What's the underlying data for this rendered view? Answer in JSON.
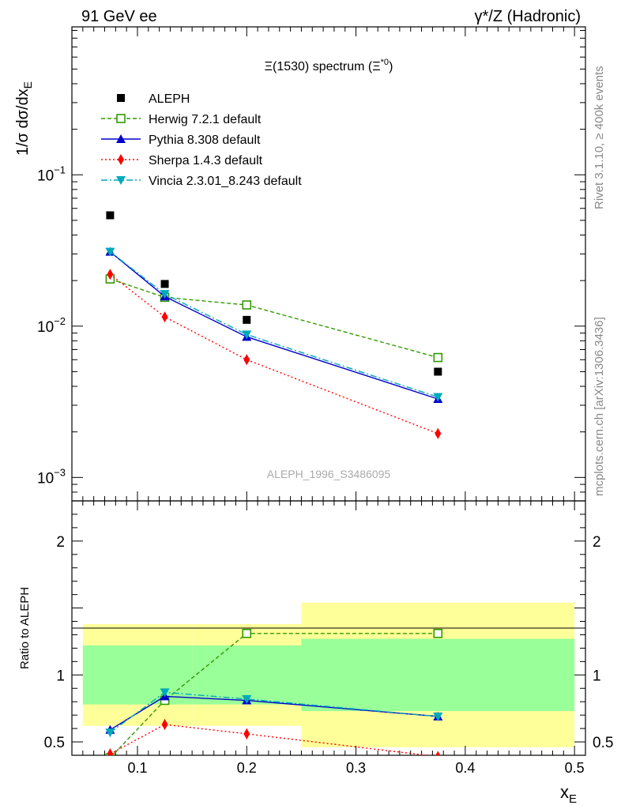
{
  "header": {
    "left": "91 GeV ee",
    "right": "γ*/Z (Hadronic)"
  },
  "side_labels": {
    "rivet": "Rivet 3.1.10, ≥ 400k events",
    "mcplots": "mcplots.cern.ch [arXiv:1306.3436]"
  },
  "chart_data": {
    "type": "scatter",
    "title": "Ξ(1530) spectrum (Ξ*0)",
    "title_main": "Ξ(1530) spectrum (Ξ",
    "title_sup": "*0",
    "title_end": ")",
    "watermark": "ALEPH_1996_S3486095",
    "xlabel": "x_E",
    "xlabel_main": "x",
    "xlabel_sub": "E",
    "ylabel": "1/σ dσ/dx_E",
    "ylabel_main": "1/σ dσ/dx",
    "ylabel_sub": "E",
    "ratio_ylabel": "Ratio to ALEPH",
    "xlim": [
      0.04,
      0.51
    ],
    "ylim": [
      0.0007,
      0.95
    ],
    "ratio_ylim": [
      0.4,
      2.3
    ],
    "yscale": "log",
    "x_ticks": [
      {
        "v": 0.1,
        "label": "0.1"
      },
      {
        "v": 0.2,
        "label": "0.2"
      },
      {
        "v": 0.3,
        "label": "0.3"
      },
      {
        "v": 0.4,
        "label": "0.4"
      },
      {
        "v": 0.5,
        "label": "0.5"
      }
    ],
    "y_ticks": [
      {
        "v": 0.1,
        "base": "10",
        "exp": "−1"
      },
      {
        "v": 0.01,
        "base": "10",
        "exp": "−2"
      },
      {
        "v": 0.001,
        "base": "10",
        "exp": "−3"
      }
    ],
    "ratio_ticks": [
      {
        "v": 2,
        "label": "2"
      },
      {
        "v": 1,
        "label": "1"
      },
      {
        "v": 0.5,
        "label": "0.5"
      }
    ],
    "x": [
      0.075,
      0.125,
      0.2,
      0.375
    ],
    "bins": [
      [
        0.05,
        0.1
      ],
      [
        0.1,
        0.15
      ],
      [
        0.15,
        0.25
      ],
      [
        0.25,
        0.5
      ]
    ],
    "data": {
      "name": "ALEPH",
      "values": [
        0.054,
        0.019,
        0.011,
        0.005
      ],
      "band_inner_rel": [
        0.22,
        0.22,
        0.22,
        0.27
      ],
      "band_outer_rel": [
        0.38,
        0.38,
        0.38,
        0.54
      ]
    },
    "series": [
      {
        "name": "Herwig 7.2.1 default",
        "color": "#339900",
        "dash": "5,3",
        "marker": "open-square",
        "values": [
          0.0205,
          0.0155,
          0.0138,
          0.0062
        ],
        "ratio": [
          0.38,
          0.81,
          1.31,
          1.31
        ]
      },
      {
        "name": "Pythia 8.308 default",
        "color": "#0000cc",
        "dash": "",
        "marker": "triangle-up",
        "values": [
          0.031,
          0.0157,
          0.0085,
          0.0033
        ],
        "ratio": [
          0.59,
          0.84,
          0.81,
          0.69
        ]
      },
      {
        "name": "Sherpa 1.4.3 default",
        "color": "#ff0000",
        "dash": "2,3",
        "marker": "diamond",
        "values": [
          0.022,
          0.0115,
          0.006,
          0.00195
        ],
        "ratio": [
          0.41,
          0.63,
          0.56,
          0.39
        ]
      },
      {
        "name": "Vincia 2.3.01_8.243 default",
        "color": "#00aabb",
        "dash": "8,3,2,3",
        "marker": "triangle-down",
        "values": [
          0.031,
          0.0163,
          0.0088,
          0.0034
        ],
        "ratio": [
          0.57,
          0.87,
          0.82,
          0.69
        ]
      }
    ]
  }
}
